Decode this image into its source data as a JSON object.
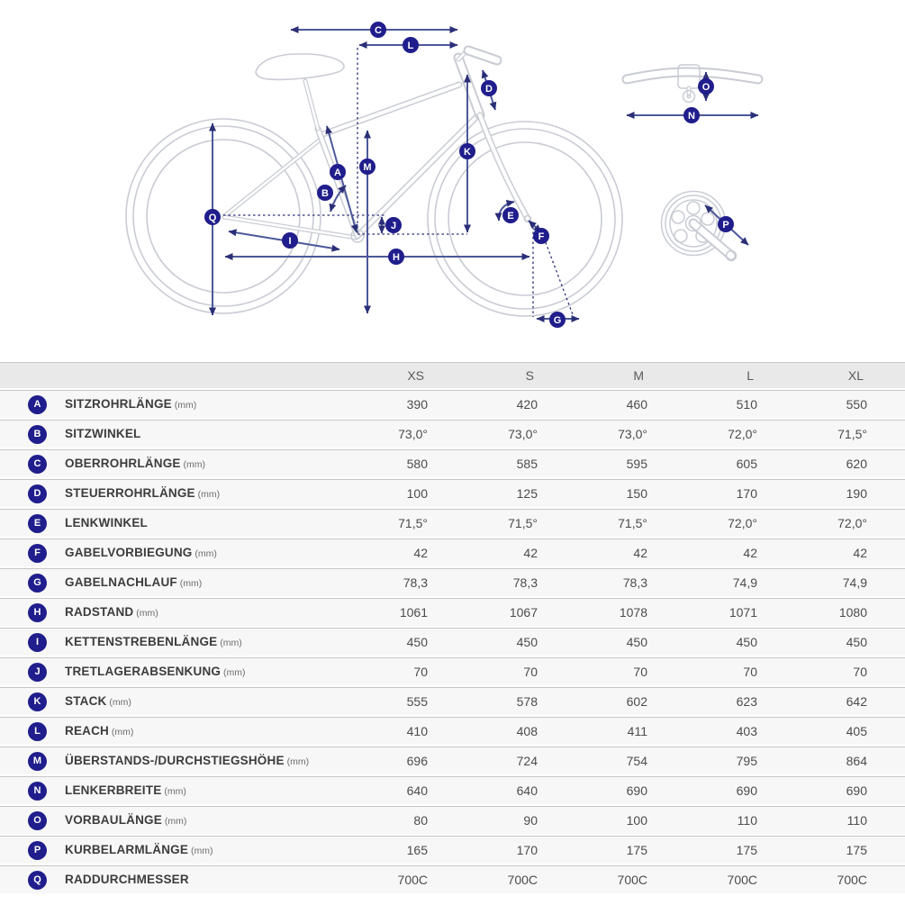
{
  "colors": {
    "badge": "#201d8c",
    "arrow": "#4d5899",
    "arrow_dark": "#2b2f77",
    "frame": "#c9ccd4",
    "row_bg": "#f7f7f7",
    "header_bg": "#e9e9e9",
    "line": "#c6c6c6"
  },
  "diagram": {
    "markers": {
      "A": "A",
      "B": "B",
      "C": "C",
      "D": "D",
      "E": "E",
      "F": "F",
      "G": "G",
      "H": "H",
      "I": "I",
      "J": "J",
      "K": "K",
      "L": "L",
      "M": "M",
      "N": "N",
      "O": "O",
      "P": "P",
      "Q": "Q"
    }
  },
  "table": {
    "size_headers": [
      "XS",
      "S",
      "M",
      "L",
      "XL"
    ],
    "rows": [
      {
        "key": "A",
        "label": "SITZROHRLÄNGE",
        "unit": "(mm)",
        "values": [
          "390",
          "420",
          "460",
          "510",
          "550"
        ]
      },
      {
        "key": "B",
        "label": "SITZWINKEL",
        "unit": "",
        "values": [
          "73,0°",
          "73,0°",
          "73,0°",
          "72,0°",
          "71,5°"
        ]
      },
      {
        "key": "C",
        "label": "OBERROHRLÄNGE",
        "unit": "(mm)",
        "values": [
          "580",
          "585",
          "595",
          "605",
          "620"
        ]
      },
      {
        "key": "D",
        "label": "STEUERROHRLÄNGE",
        "unit": "(mm)",
        "values": [
          "100",
          "125",
          "150",
          "170",
          "190"
        ]
      },
      {
        "key": "E",
        "label": "LENKWINKEL",
        "unit": "",
        "values": [
          "71,5°",
          "71,5°",
          "71,5°",
          "72,0°",
          "72,0°"
        ]
      },
      {
        "key": "F",
        "label": "GABELVORBIEGUNG",
        "unit": "(mm)",
        "values": [
          "42",
          "42",
          "42",
          "42",
          "42"
        ]
      },
      {
        "key": "G",
        "label": "GABELNACHLAUF",
        "unit": "(mm)",
        "values": [
          "78,3",
          "78,3",
          "78,3",
          "74,9",
          "74,9"
        ]
      },
      {
        "key": "H",
        "label": "RADSTAND",
        "unit": "(mm)",
        "values": [
          "1061",
          "1067",
          "1078",
          "1071",
          "1080"
        ]
      },
      {
        "key": "I",
        "label": "KETTENSTREBENLÄNGE",
        "unit": "(mm)",
        "values": [
          "450",
          "450",
          "450",
          "450",
          "450"
        ]
      },
      {
        "key": "J",
        "label": "TRETLAGERABSENKUNG",
        "unit": "(mm)",
        "values": [
          "70",
          "70",
          "70",
          "70",
          "70"
        ]
      },
      {
        "key": "K",
        "label": "STACK",
        "unit": "(mm)",
        "values": [
          "555",
          "578",
          "602",
          "623",
          "642"
        ]
      },
      {
        "key": "L",
        "label": "REACH",
        "unit": "(mm)",
        "values": [
          "410",
          "408",
          "411",
          "403",
          "405"
        ]
      },
      {
        "key": "M",
        "label": "ÜBERSTANDS-/DURCHSTIEGSHÖHE",
        "unit": "(mm)",
        "values": [
          "696",
          "724",
          "754",
          "795",
          "864"
        ]
      },
      {
        "key": "N",
        "label": "LENKERBREITE",
        "unit": "(mm)",
        "values": [
          "640",
          "640",
          "690",
          "690",
          "690"
        ]
      },
      {
        "key": "O",
        "label": "VORBAULÄNGE",
        "unit": "(mm)",
        "values": [
          "80",
          "90",
          "100",
          "110",
          "110"
        ]
      },
      {
        "key": "P",
        "label": "KURBELARMLÄNGE",
        "unit": "(mm)",
        "values": [
          "165",
          "170",
          "175",
          "175",
          "175"
        ]
      },
      {
        "key": "Q",
        "label": "RADDURCHMESSER",
        "unit": "",
        "values": [
          "700C",
          "700C",
          "700C",
          "700C",
          "700C"
        ]
      }
    ]
  }
}
